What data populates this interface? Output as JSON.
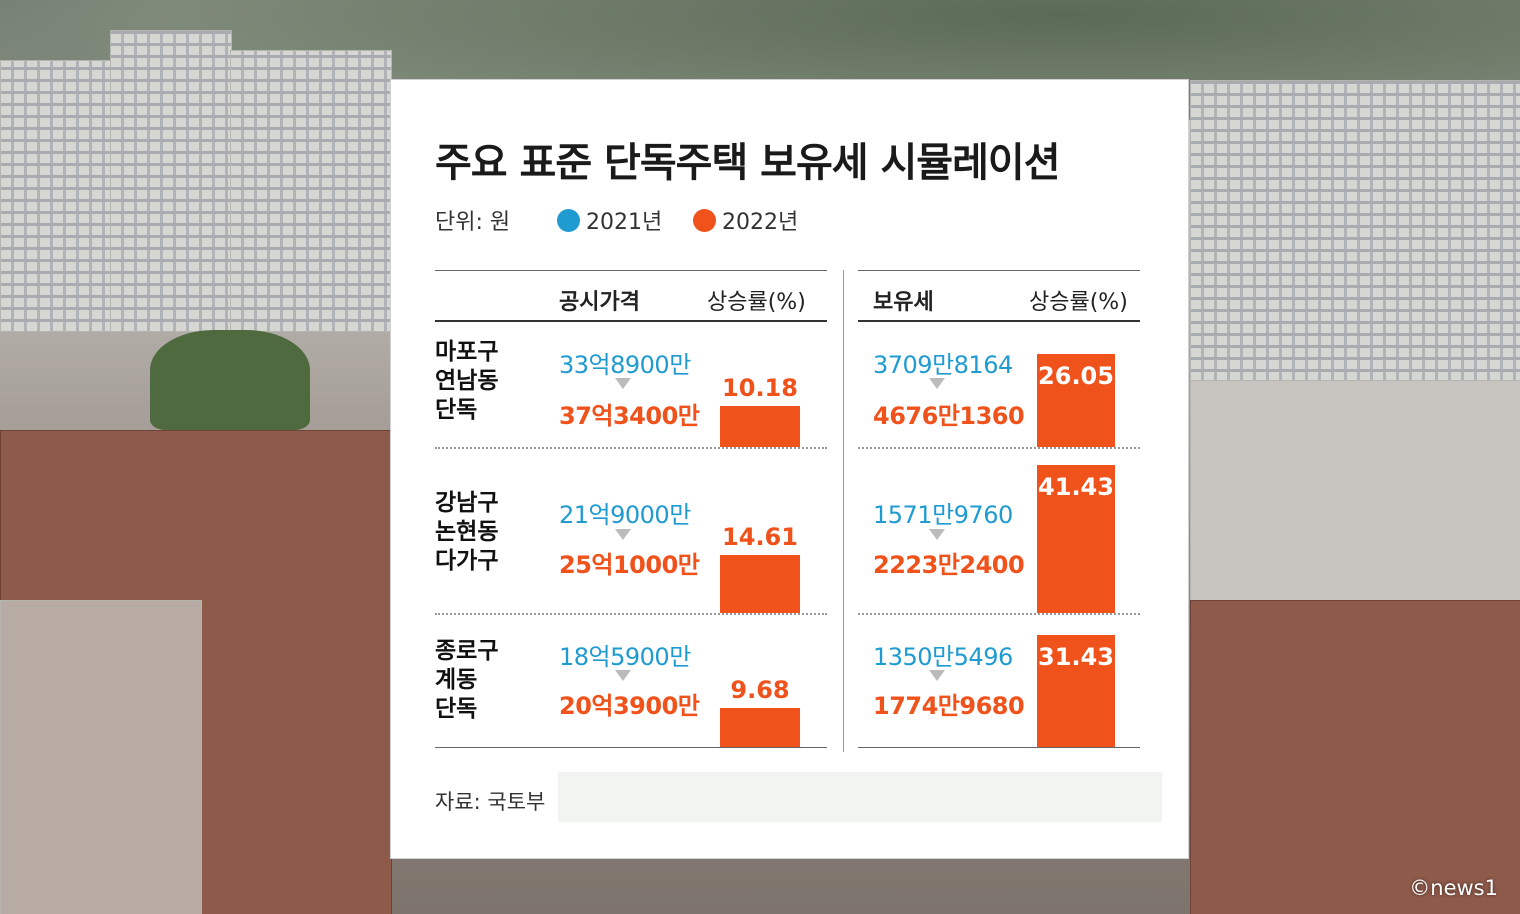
{
  "title": "주요 표준 단독주택 보유세 시뮬레이션",
  "unit": "단위: 원",
  "watermark": "©news1",
  "source": "자료: 국토부",
  "colors": {
    "y2021": "#1f9bd1",
    "y2022": "#f0521c"
  },
  "columns": {
    "left_value": "공시가격",
    "left_rate": "상승률(%)",
    "right_value": "보유세",
    "right_rate": "상승률(%)"
  },
  "chart_data": {
    "type": "bar",
    "legend": [
      "2021년",
      "2022년"
    ],
    "categories": [
      "마포구 연남동 단독",
      "강남구 논현동 다가구",
      "종로구 계동 단독"
    ],
    "rows": [
      {
        "region": [
          "마포구",
          "연남동",
          "단독"
        ],
        "price_2021": "33억8900만",
        "price_2022": "37억3400만",
        "price_rate": 10.18,
        "tax_2021": "3709만8164",
        "tax_2022": "4676만1360",
        "tax_rate": 26.05
      },
      {
        "region": [
          "강남구",
          "논현동",
          "다가구"
        ],
        "price_2021": "21억9000만",
        "price_2022": "25억1000만",
        "price_rate": 14.61,
        "tax_2021": "1571만9760",
        "tax_2022": "2223만2400",
        "tax_rate": 41.43
      },
      {
        "region": [
          "종로구",
          "계동",
          "단독"
        ],
        "price_2021": "18억5900만",
        "price_2022": "20억3900만",
        "price_rate": 9.68,
        "tax_2021": "1350만5496",
        "tax_2022": "1774만9680",
        "tax_rate": 31.43
      }
    ]
  }
}
